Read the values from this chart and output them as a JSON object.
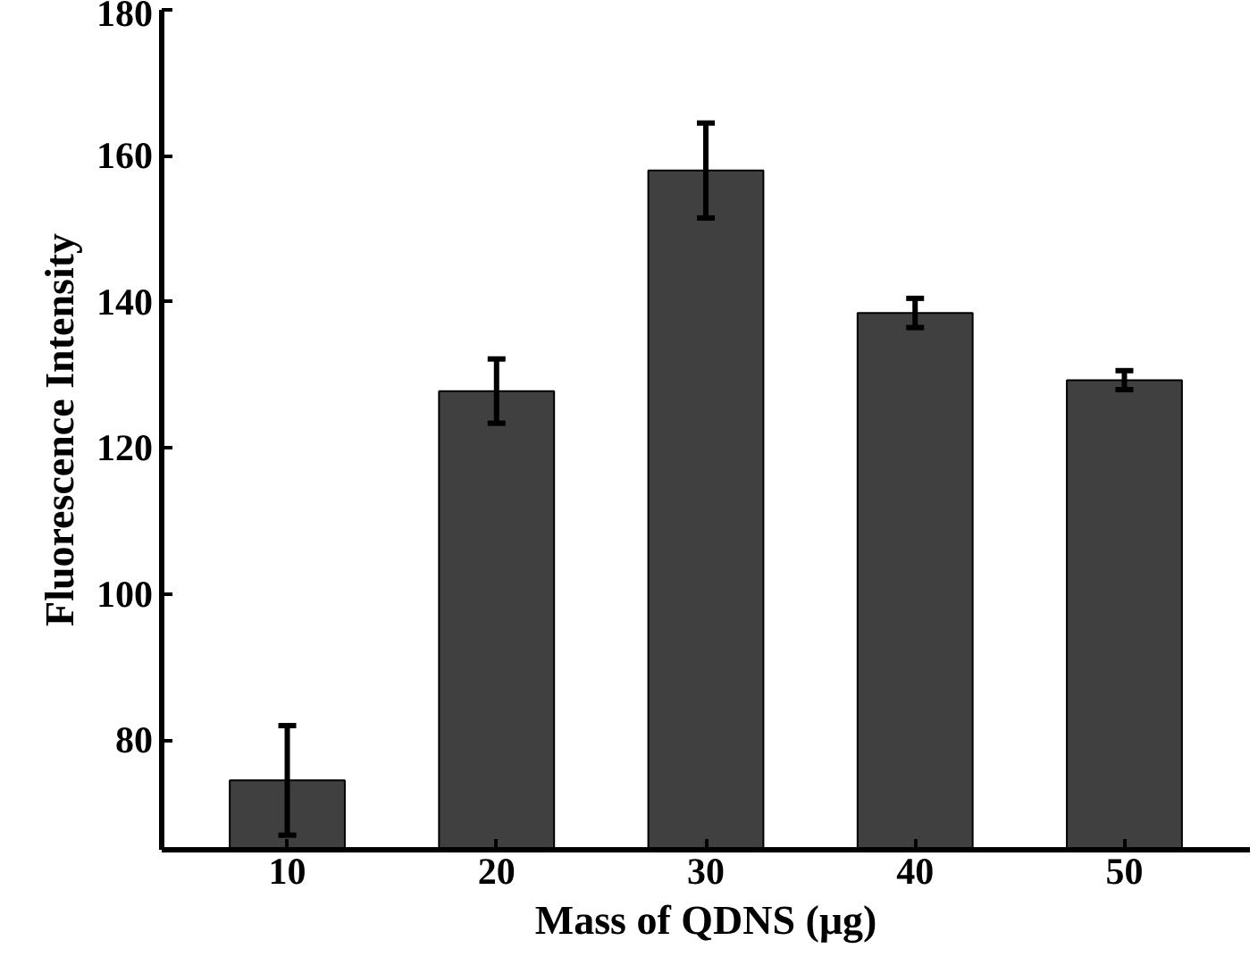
{
  "chart_data": {
    "type": "bar",
    "xlabel": "Mass of QDNS (μg)",
    "ylabel": "Fluorescence Intensity",
    "categories": [
      "10",
      "20",
      "30",
      "40",
      "50"
    ],
    "values": [
      74.5,
      127.8,
      158,
      138.5,
      129.3
    ],
    "errors": [
      7.5,
      4.4,
      6.5,
      2,
      1.3
    ],
    "color": "#404040",
    "ylim": [
      65,
      180
    ],
    "yticks": [
      80,
      100,
      120,
      140,
      160,
      180
    ],
    "grid": false
  }
}
